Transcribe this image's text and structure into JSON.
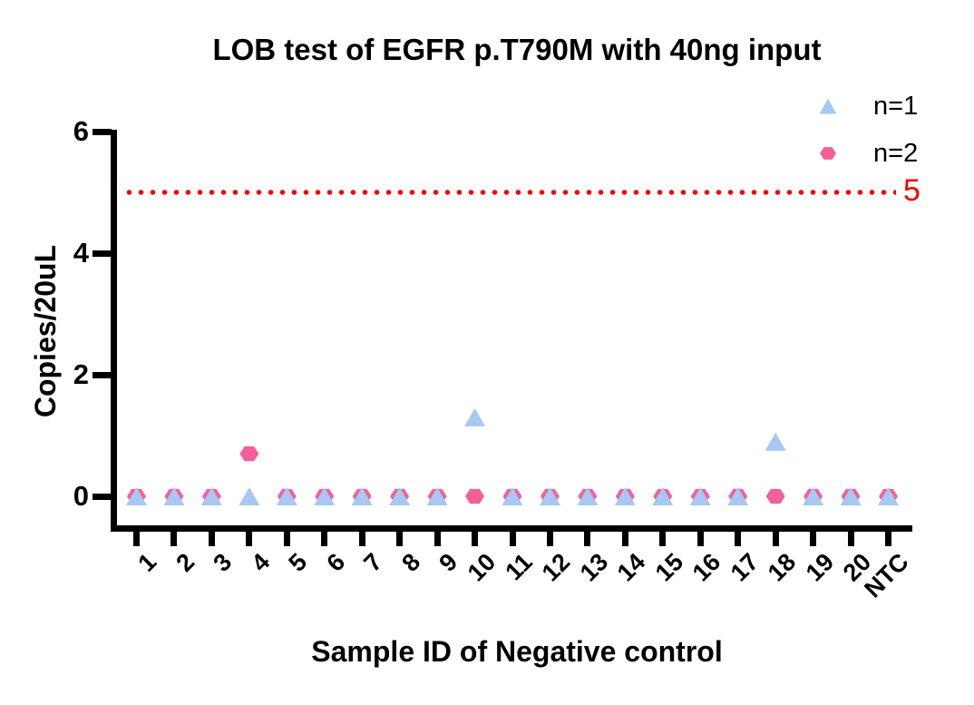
{
  "chart_data": {
    "type": "scatter",
    "title": "LOB test of EGFR p.T790M with 40ng input",
    "xlabel": "Sample ID of Negative control",
    "ylabel": "Copies/20uL",
    "categories": [
      "1",
      "2",
      "3",
      "4",
      "5",
      "6",
      "7",
      "8",
      "9",
      "10",
      "11",
      "12",
      "13",
      "14",
      "15",
      "16",
      "17",
      "18",
      "19",
      "20",
      "NTC"
    ],
    "yticks": [
      0,
      2,
      4,
      6
    ],
    "ylim": [
      0,
      6
    ],
    "grid": false,
    "legend_position": "top-right",
    "series": [
      {
        "name": "n=1",
        "marker": "triangle",
        "color": "#A6C8F2",
        "values": [
          0,
          0,
          0,
          0,
          0,
          0,
          0,
          0,
          0,
          1.3,
          0,
          0,
          0,
          0,
          0,
          0,
          0,
          0.9,
          0,
          0,
          0
        ]
      },
      {
        "name": "n=2",
        "marker": "hexagon",
        "color": "#F2609A",
        "values": [
          0,
          0,
          0,
          0.7,
          0,
          0,
          0,
          0,
          0,
          0,
          0,
          0,
          0,
          0,
          0,
          0,
          0,
          0,
          0,
          0,
          0
        ]
      }
    ],
    "threshold": {
      "value": 5,
      "label": "5",
      "color": "#F40000",
      "style": "dotted"
    },
    "colors": {
      "axis": "#000000",
      "background": "#FFFFFF",
      "text": "#000000"
    }
  }
}
